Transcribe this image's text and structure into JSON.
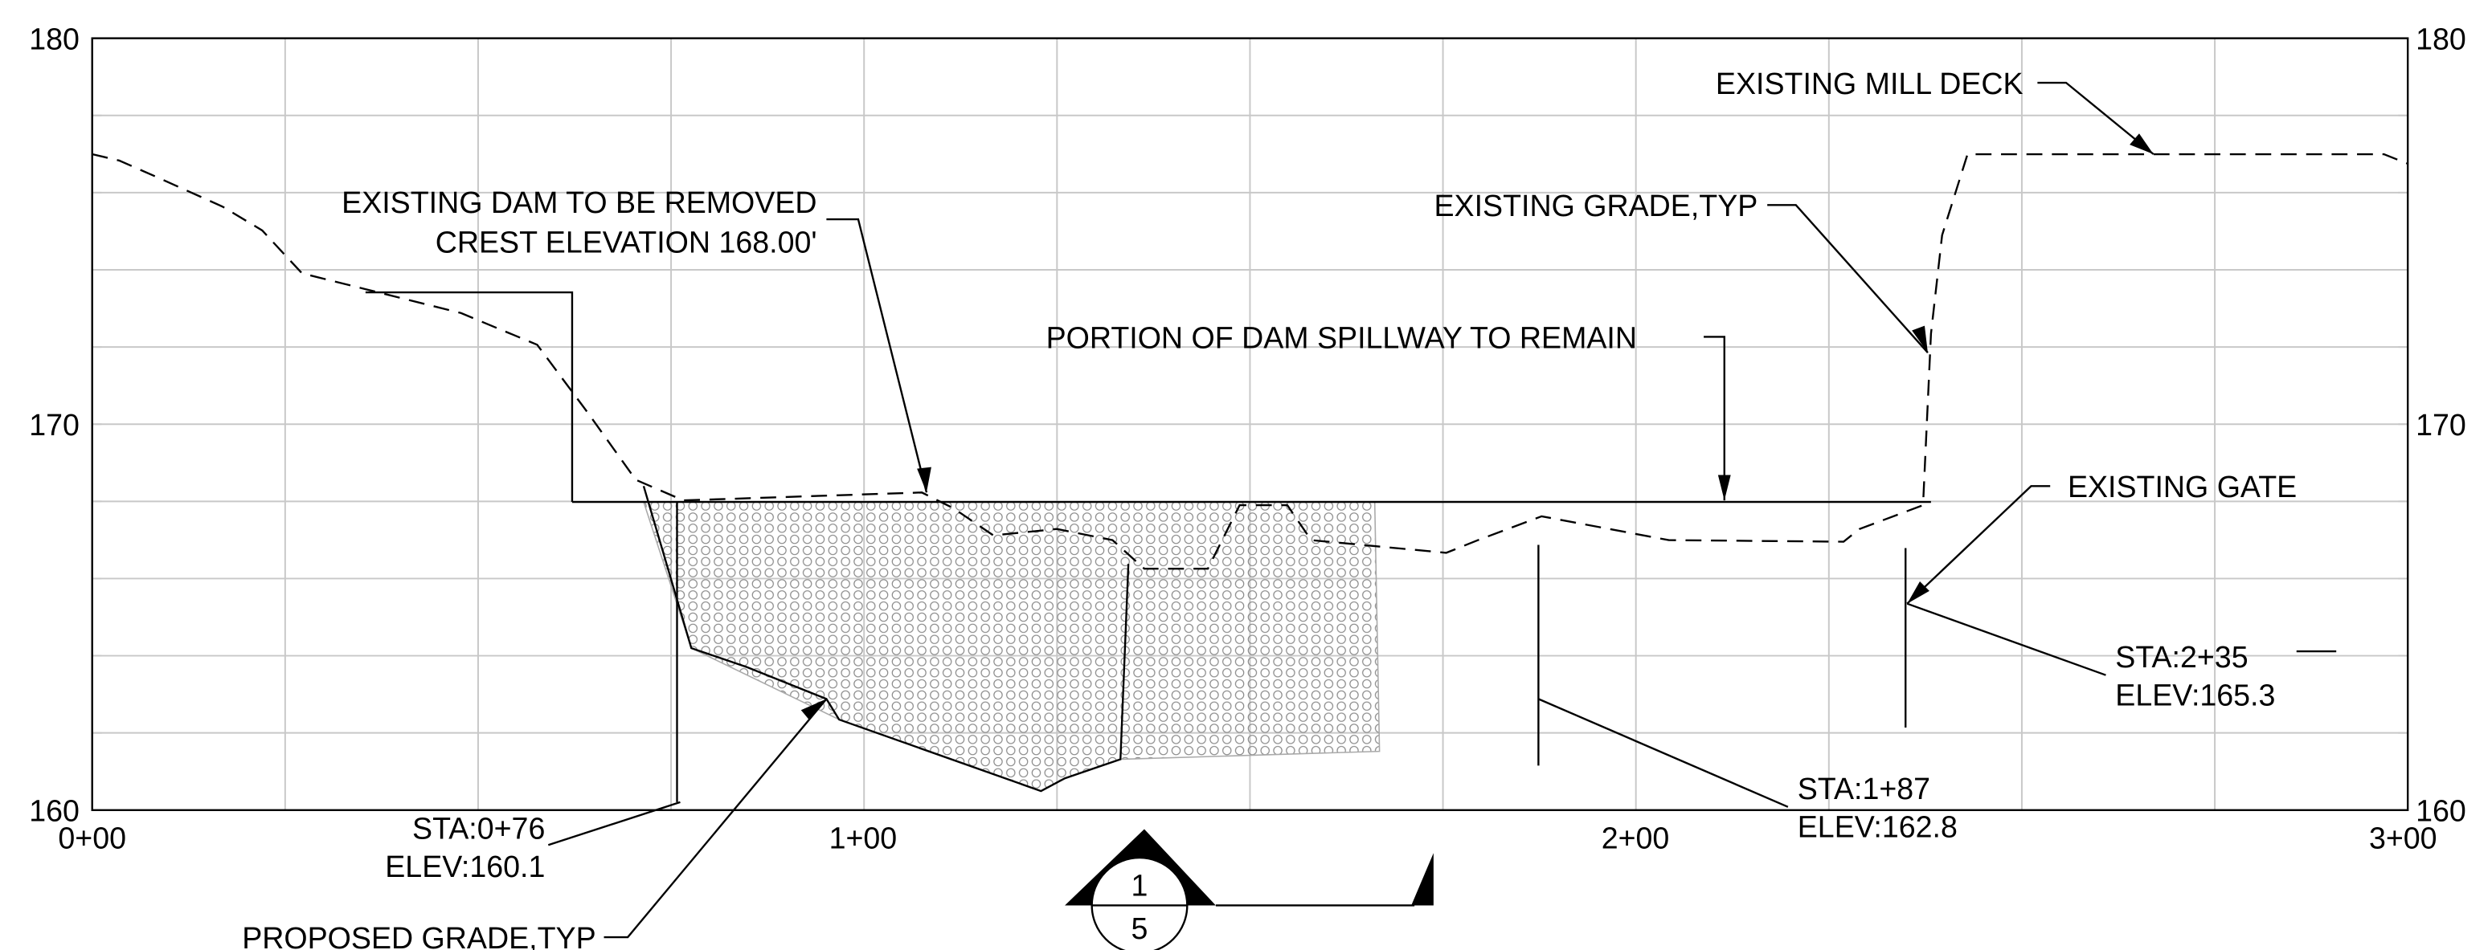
{
  "axes": {
    "left": [
      "180",
      "170",
      "160"
    ],
    "right": [
      "180",
      "170",
      "160"
    ],
    "stations": [
      "0+00",
      "1+00",
      "2+00",
      "3+00"
    ]
  },
  "annotations": {
    "mill_deck": "EXISTING MILL DECK",
    "grade": "EXISTING GRADE,TYP",
    "dam_removed": "EXISTING DAM TO BE REMOVED",
    "crest": "CREST ELEVATION 168.00'",
    "spillway": "PORTION OF DAM SPILLWAY TO REMAIN",
    "gate": "EXISTING GATE",
    "gate_sta": "STA:2+35",
    "gate_elev": "ELEV:165.3",
    "mid_sta": "STA:1+87",
    "mid_elev": "ELEV:162.8",
    "left_sta": "STA:0+76",
    "left_elev": "ELEV:160.1",
    "proposed": "PROPOSED GRADE,TYP"
  },
  "section": {
    "number": "1",
    "sheet": "5"
  }
}
